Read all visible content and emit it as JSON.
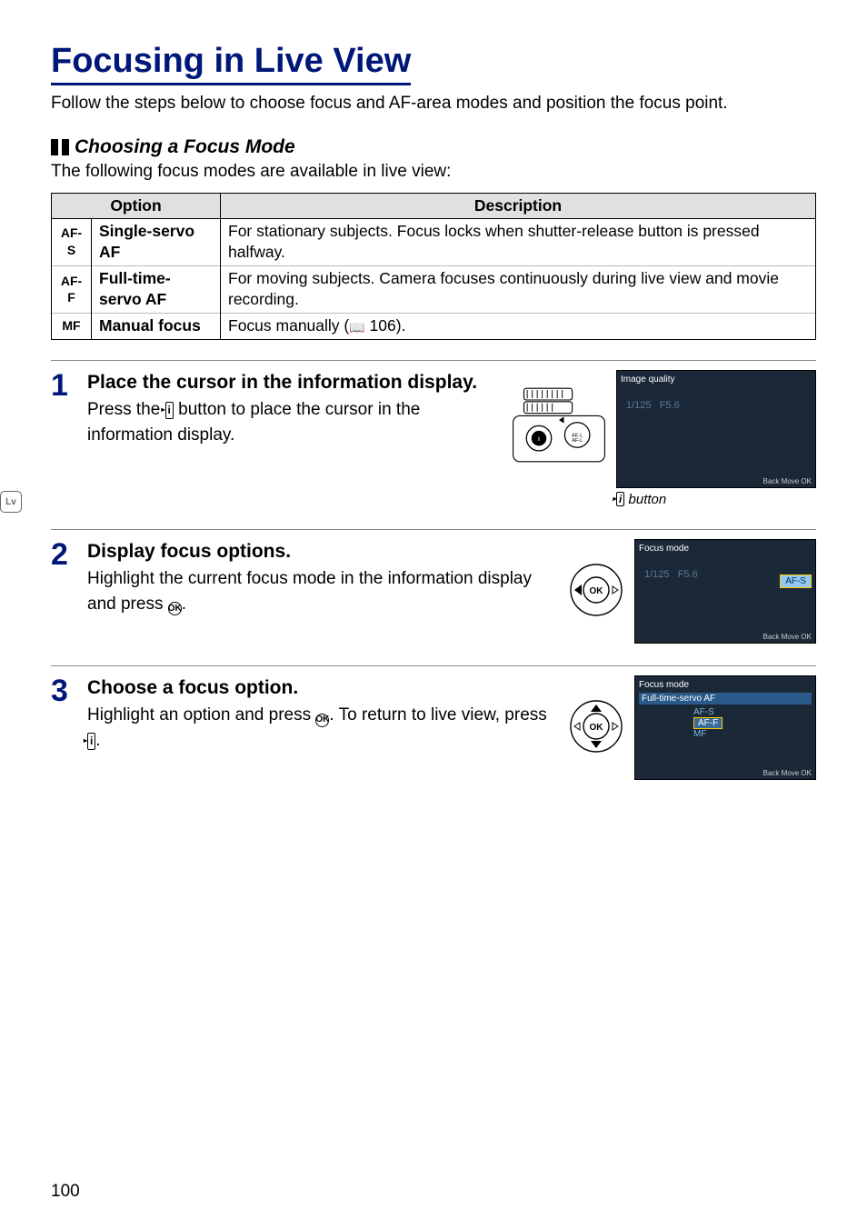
{
  "page_number": "100",
  "heading": "Focusing in Live View",
  "intro": "Follow the steps below to choose focus and AF-area modes and position the focus point.",
  "subheading": "Choosing a Focus Mode",
  "subdesc": "The following focus modes are available in live view:",
  "table": {
    "headers": [
      "Option",
      "Description"
    ],
    "rows": [
      {
        "code": "AF-S",
        "name": "Single-servo AF",
        "desc": "For stationary subjects. Focus locks when shutter-release button is pressed halfway."
      },
      {
        "code": "AF-F",
        "name": "Full-time-servo AF",
        "desc": "For moving subjects. Camera focuses continuously during live view and movie recording."
      },
      {
        "code": "MF",
        "name": "Manual focus",
        "desc_prefix": "Focus manually (",
        "desc_page": " 106).",
        "book": true
      }
    ]
  },
  "steps": [
    {
      "num": "1",
      "title": "Place the cursor in the information display.",
      "desc_parts": [
        "Press the ",
        " button to place the cursor in the information display."
      ],
      "caption_parts": [
        " button"
      ],
      "screen_title": "Image quality",
      "screen_footer": "Back   Move   OK",
      "camera": true
    },
    {
      "num": "2",
      "title": "Display focus options.",
      "desc_parts": [
        "Highlight the current focus mode in the information display and press ",
        "."
      ],
      "ok_glyph": true,
      "screen_title": "Focus mode",
      "screen_footer": "Back   Move   OK",
      "nav_type": "left"
    },
    {
      "num": "3",
      "title": "Choose a focus option.",
      "desc_parts": [
        "Highlight an option and press ",
        ".  To return to live view, press ",
        "."
      ],
      "ok_glyph": true,
      "info_glyph_end": true,
      "screen_title": "Focus mode",
      "screen_sub": "Full-time-servo AF",
      "screen_list": [
        "AF-S",
        "AF-F",
        "MF"
      ],
      "screen_footer": "Back   Move   OK",
      "nav_type": "updown"
    }
  ]
}
